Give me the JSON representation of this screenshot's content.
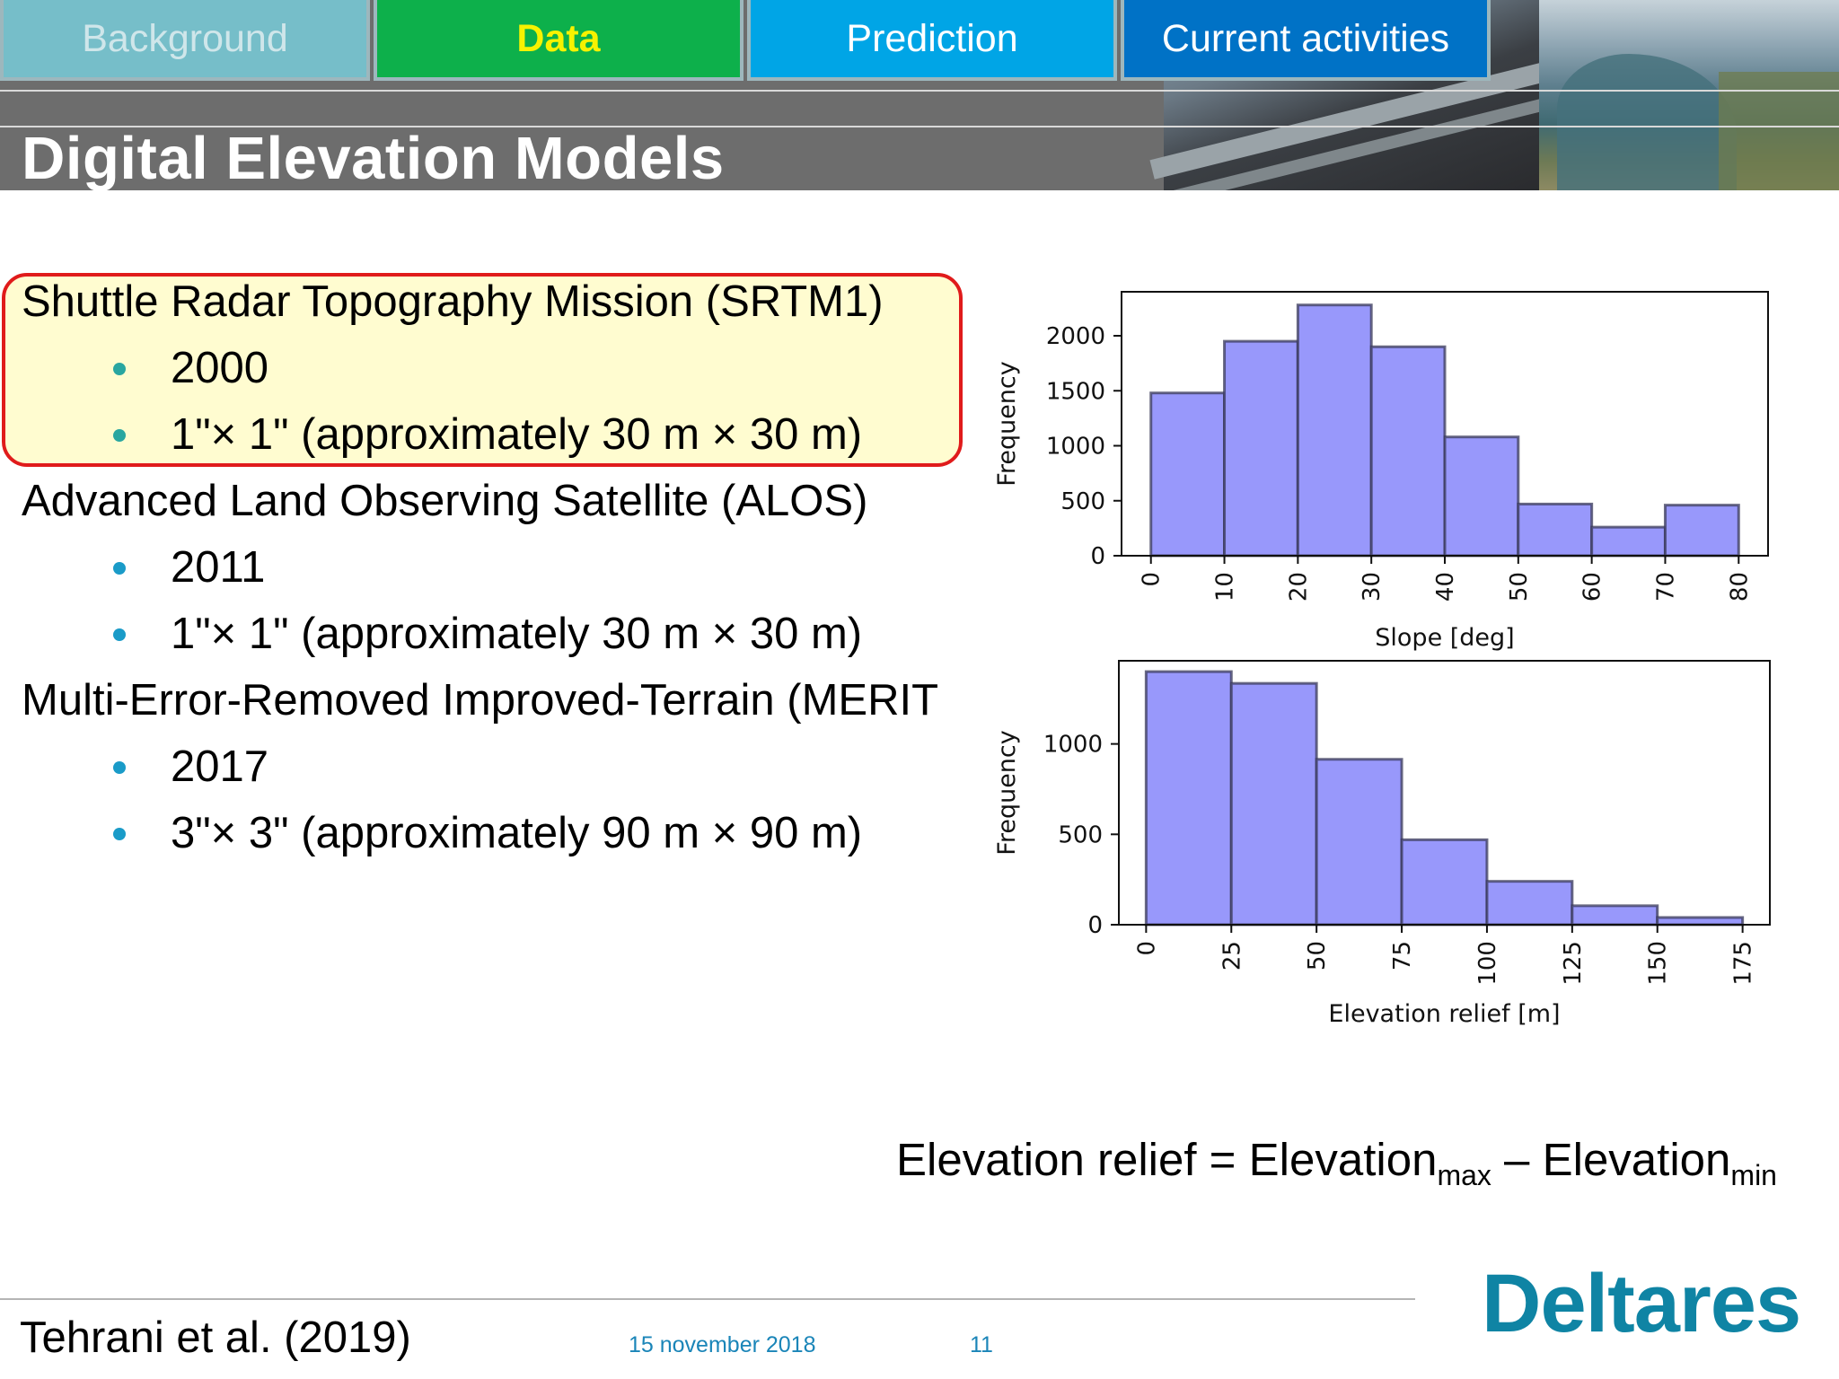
{
  "nav": {
    "tabs": [
      {
        "label": "Background"
      },
      {
        "label": "Data"
      },
      {
        "label": "Prediction"
      },
      {
        "label": "Current activities"
      }
    ]
  },
  "title": "Digital Elevation Models",
  "datasets": [
    {
      "name": "Shuttle Radar Topography Mission (SRTM1)",
      "year": "2000",
      "resolution": "1\"× 1\" (approximately 30 m × 30 m)"
    },
    {
      "name": "Advanced Land Observing Satellite (ALOS)",
      "year": "2011",
      "resolution": "1\"× 1\" (approximately 30 m × 30 m)"
    },
    {
      "name": "Multi-Error-Removed Improved-Terrain (MERIT",
      "year": "2017",
      "resolution": "3\"× 3\" (approximately 90 m × 90 m)"
    }
  ],
  "formula": {
    "lhs": "Elevation relief = Elevation",
    "max": "max",
    "mid": " – Elevation",
    "min": "min"
  },
  "footer": {
    "reference": "Tehrani et al. (2019)",
    "date": "15 november 2018",
    "page": "11",
    "logo": "Deltares"
  },
  "colors": {
    "bar_fill": "#9898fb",
    "bar_edge": "#3a3a5a",
    "highlight_border": "#e01b1b",
    "highlight_fill": "#fffcd0"
  },
  "chart_data": [
    {
      "type": "bar",
      "title": "",
      "xlabel": "Slope [deg]",
      "ylabel": "Frequency",
      "bin_edges": [
        0,
        10,
        20,
        30,
        40,
        50,
        60,
        70,
        80
      ],
      "values": [
        1480,
        1950,
        2280,
        1900,
        1080,
        470,
        260,
        460
      ],
      "x_ticks": [
        0,
        10,
        20,
        30,
        40,
        50,
        60,
        70,
        80
      ],
      "y_ticks": [
        0,
        500,
        1000,
        1500,
        2000
      ],
      "xlim": [
        -4,
        84
      ],
      "ylim": [
        0,
        2400
      ]
    },
    {
      "type": "bar",
      "title": "",
      "xlabel": "Elevation relief [m]",
      "ylabel": "Frequency",
      "bin_edges": [
        0,
        25,
        50,
        75,
        100,
        125,
        150,
        175
      ],
      "values": [
        1400,
        1335,
        915,
        470,
        240,
        105,
        40
      ],
      "x_ticks": [
        0,
        25,
        50,
        75,
        100,
        125,
        150,
        175
      ],
      "y_ticks": [
        0,
        500,
        1000
      ],
      "xlim": [
        -8,
        183
      ],
      "ylim": [
        0,
        1460
      ]
    }
  ]
}
